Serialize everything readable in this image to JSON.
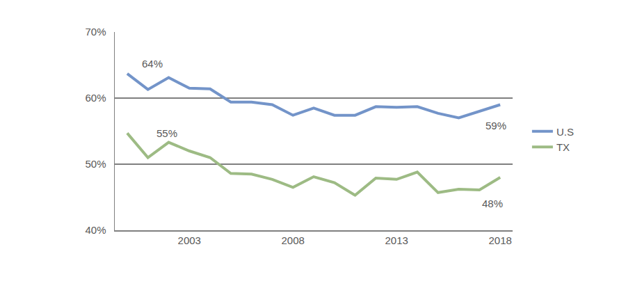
{
  "chart_data": {
    "type": "line",
    "x": [
      2000,
      2001,
      2002,
      2003,
      2004,
      2005,
      2006,
      2007,
      2008,
      2009,
      2010,
      2011,
      2012,
      2013,
      2014,
      2015,
      2016,
      2017,
      2018
    ],
    "series": [
      {
        "name": "U.S",
        "color": "#7394c9",
        "values": [
          63.7,
          61.3,
          63.1,
          61.5,
          61.4,
          59.4,
          59.4,
          59.0,
          57.4,
          58.5,
          57.4,
          57.4,
          58.7,
          58.6,
          58.7,
          57.7,
          57.0,
          58.0,
          59.0
        ]
      },
      {
        "name": "TX",
        "color": "#9dbb84",
        "values": [
          54.7,
          51.0,
          53.3,
          52.0,
          51.0,
          48.6,
          48.5,
          47.7,
          46.5,
          48.1,
          47.2,
          45.3,
          47.9,
          47.7,
          48.8,
          45.7,
          46.2,
          46.1,
          48.0
        ]
      }
    ],
    "annotations": [
      {
        "text": "64%",
        "x": 2000,
        "y": 63.7
      },
      {
        "text": "55%",
        "x": 2000,
        "y": 54.7
      },
      {
        "text": "59%",
        "x": 2018,
        "y": 59.0
      },
      {
        "text": "48%",
        "x": 2018,
        "y": 48.0
      }
    ],
    "xlim": [
      1999.4,
      2018.6
    ],
    "xticks": [
      2003,
      2008,
      2013,
      2018
    ],
    "ylim": [
      40,
      70
    ],
    "yticks": [
      {
        "value": 40,
        "label": "40%"
      },
      {
        "value": 50,
        "label": "50%"
      },
      {
        "value": 60,
        "label": "60%"
      },
      {
        "value": 70,
        "label": "70%"
      }
    ],
    "grid": true,
    "legend": "right"
  }
}
